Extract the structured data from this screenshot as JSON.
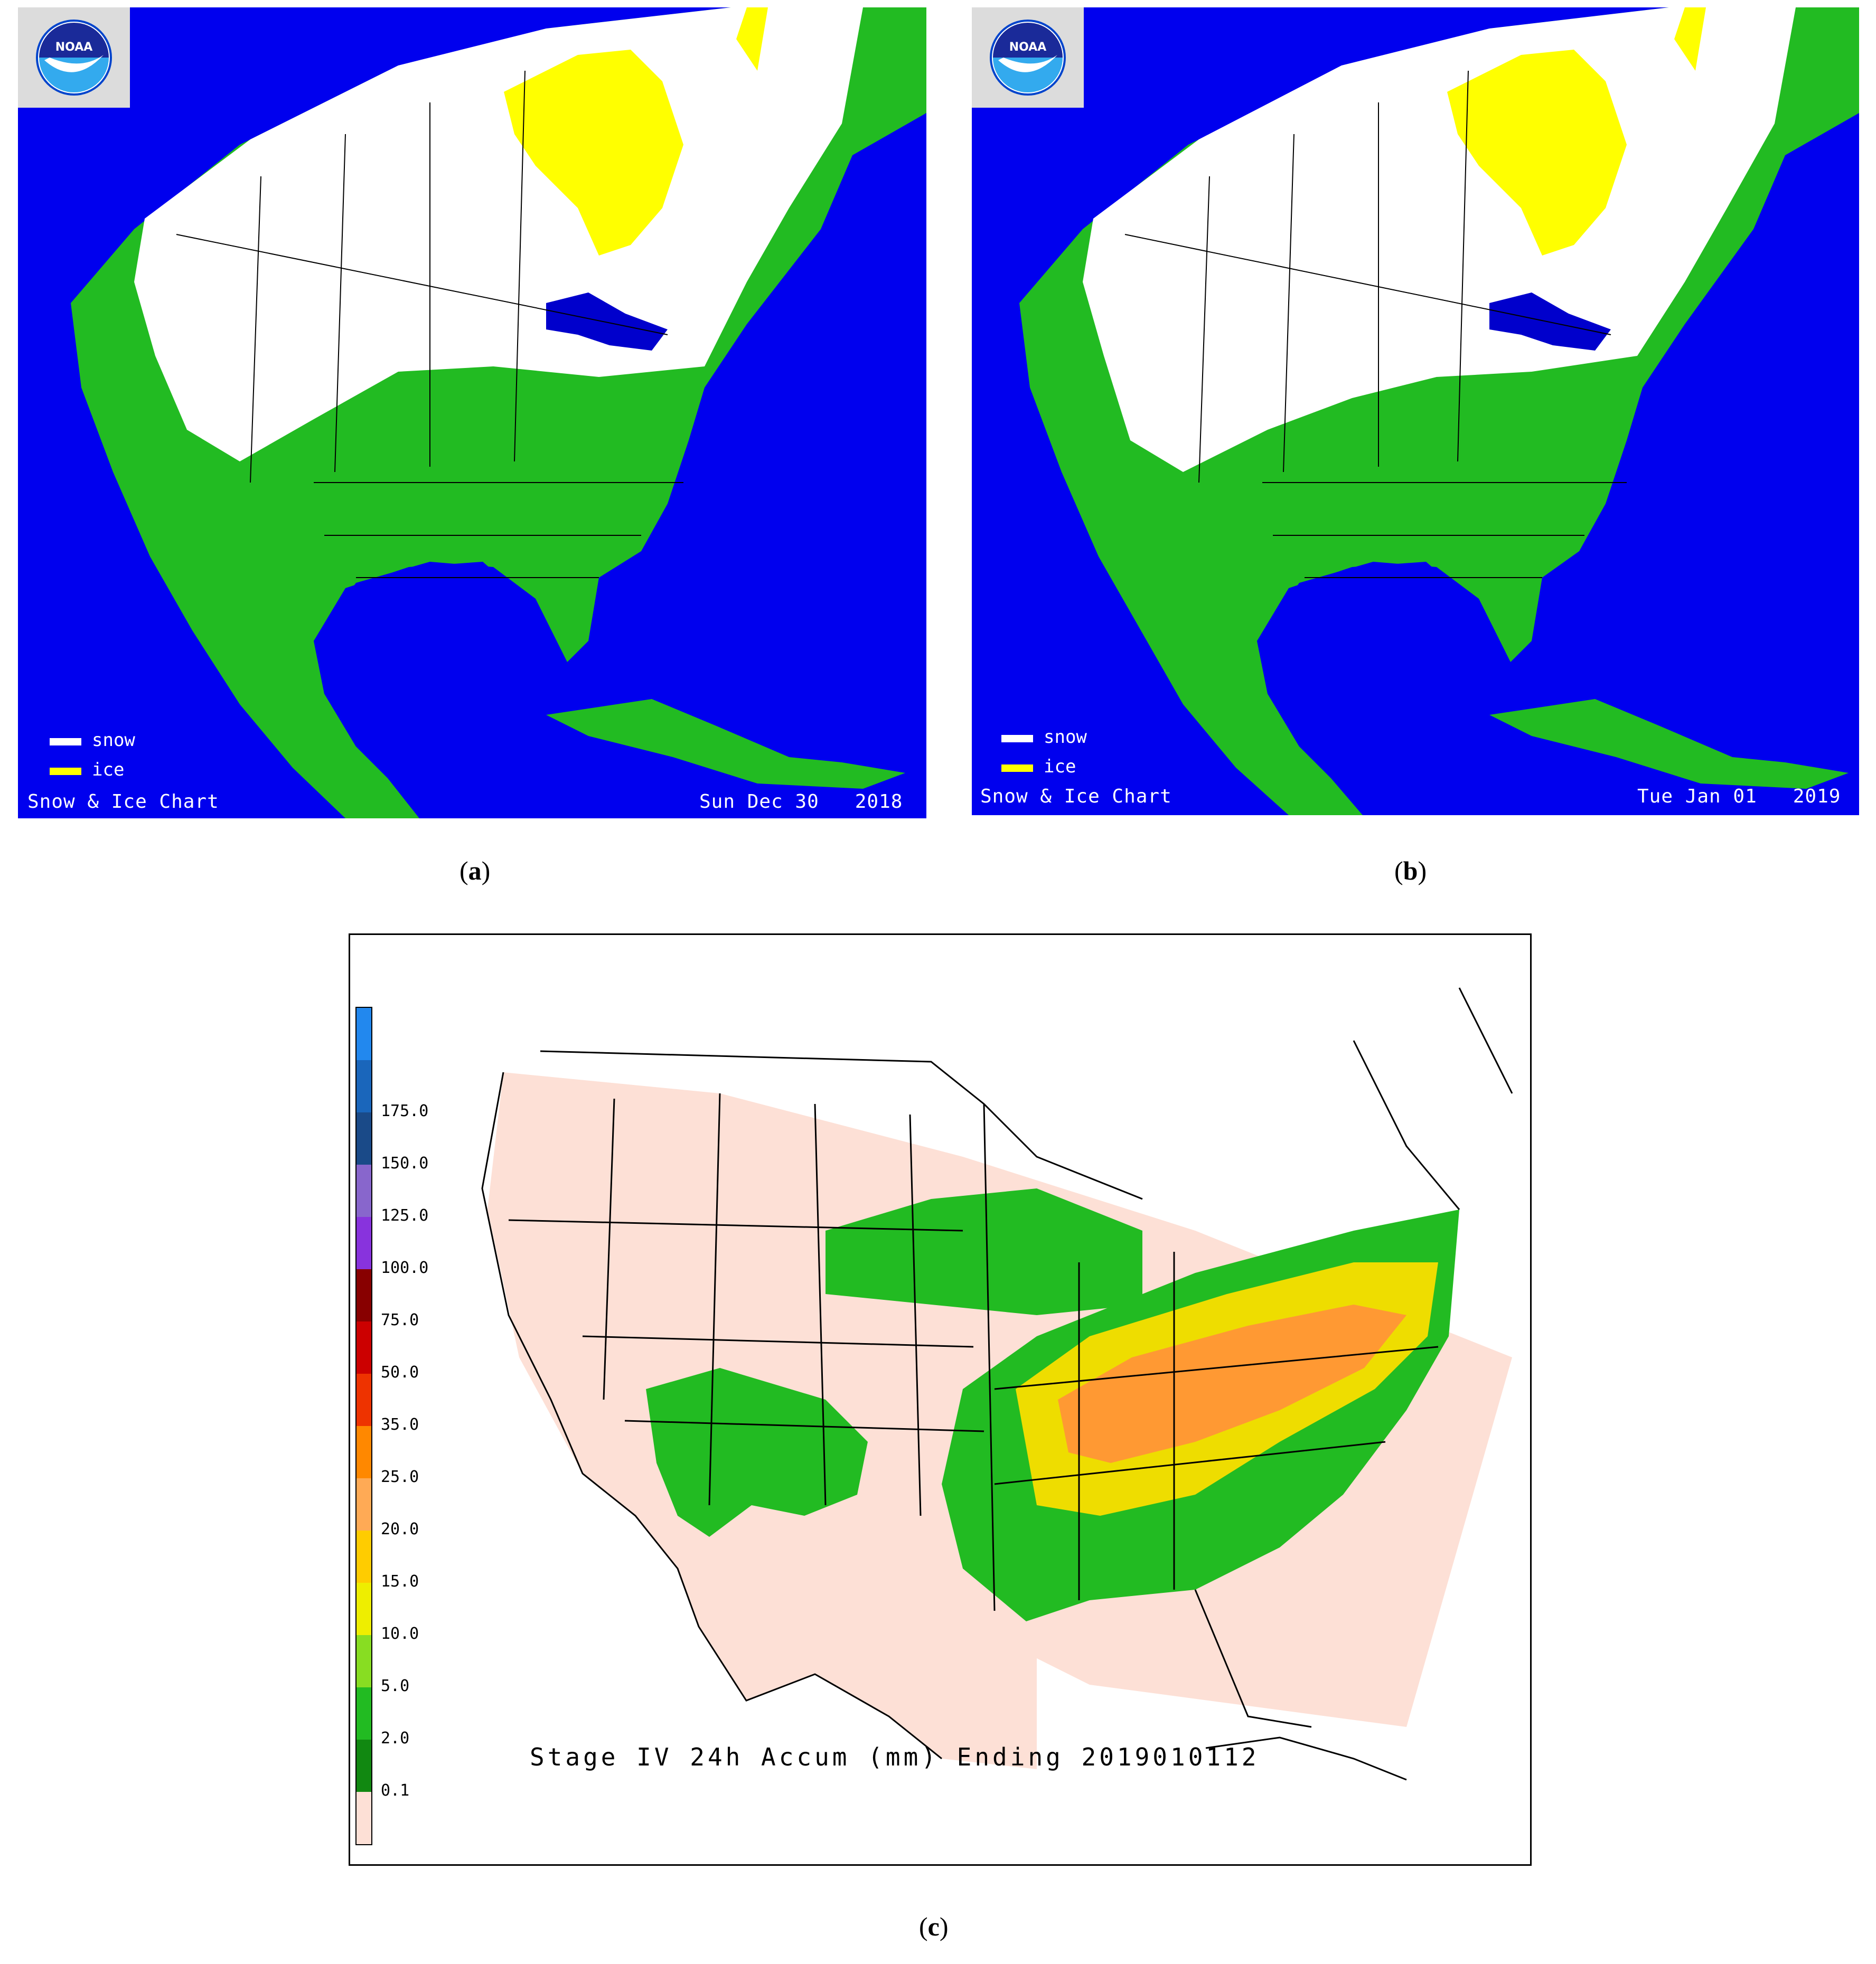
{
  "panels": {
    "a": {
      "caption": "a",
      "logo_text": "NOAA",
      "legend": [
        {
          "label": "snow",
          "color": "#ffffff"
        },
        {
          "label": "ice",
          "color": "#ffff00"
        }
      ],
      "footer_left": "Snow & Ice Chart",
      "footer_right": "Sun Dec 30   2018"
    },
    "b": {
      "caption": "b",
      "logo_text": "NOAA",
      "legend": [
        {
          "label": "snow",
          "color": "#ffffff"
        },
        {
          "label": "ice",
          "color": "#ffff00"
        }
      ],
      "footer_left": "Snow & Ice Chart",
      "footer_right": "Tue Jan 01   2019"
    },
    "c": {
      "caption": "c",
      "title": "Stage IV 24h Accum (mm) Ending 2019010112",
      "colorbar": [
        {
          "label": "",
          "color": "#2288ee"
        },
        {
          "label": "175.0",
          "color": "#1a66bb"
        },
        {
          "label": "150.0",
          "color": "#1a4a88"
        },
        {
          "label": "125.0",
          "color": "#8866cc"
        },
        {
          "label": "100.0",
          "color": "#8833dd"
        },
        {
          "label": "75.0",
          "color": "#880000"
        },
        {
          "label": "50.0",
          "color": "#cc0000"
        },
        {
          "label": "35.0",
          "color": "#ee3300"
        },
        {
          "label": "25.0",
          "color": "#ff8800"
        },
        {
          "label": "20.0",
          "color": "#ffaa55"
        },
        {
          "label": "15.0",
          "color": "#ffcc00"
        },
        {
          "label": "10.0",
          "color": "#eeee00"
        },
        {
          "label": "5.0",
          "color": "#88dd22"
        },
        {
          "label": "2.0",
          "color": "#22bb22"
        },
        {
          "label": "0.1",
          "color": "#118811"
        },
        {
          "label": "",
          "color": "#fde0d6"
        }
      ]
    }
  },
  "colors": {
    "ocean": "#0000ee",
    "land": "#22bb22",
    "snow": "#ffffff",
    "ice": "#ffff00",
    "lakes": "#0000cc"
  }
}
